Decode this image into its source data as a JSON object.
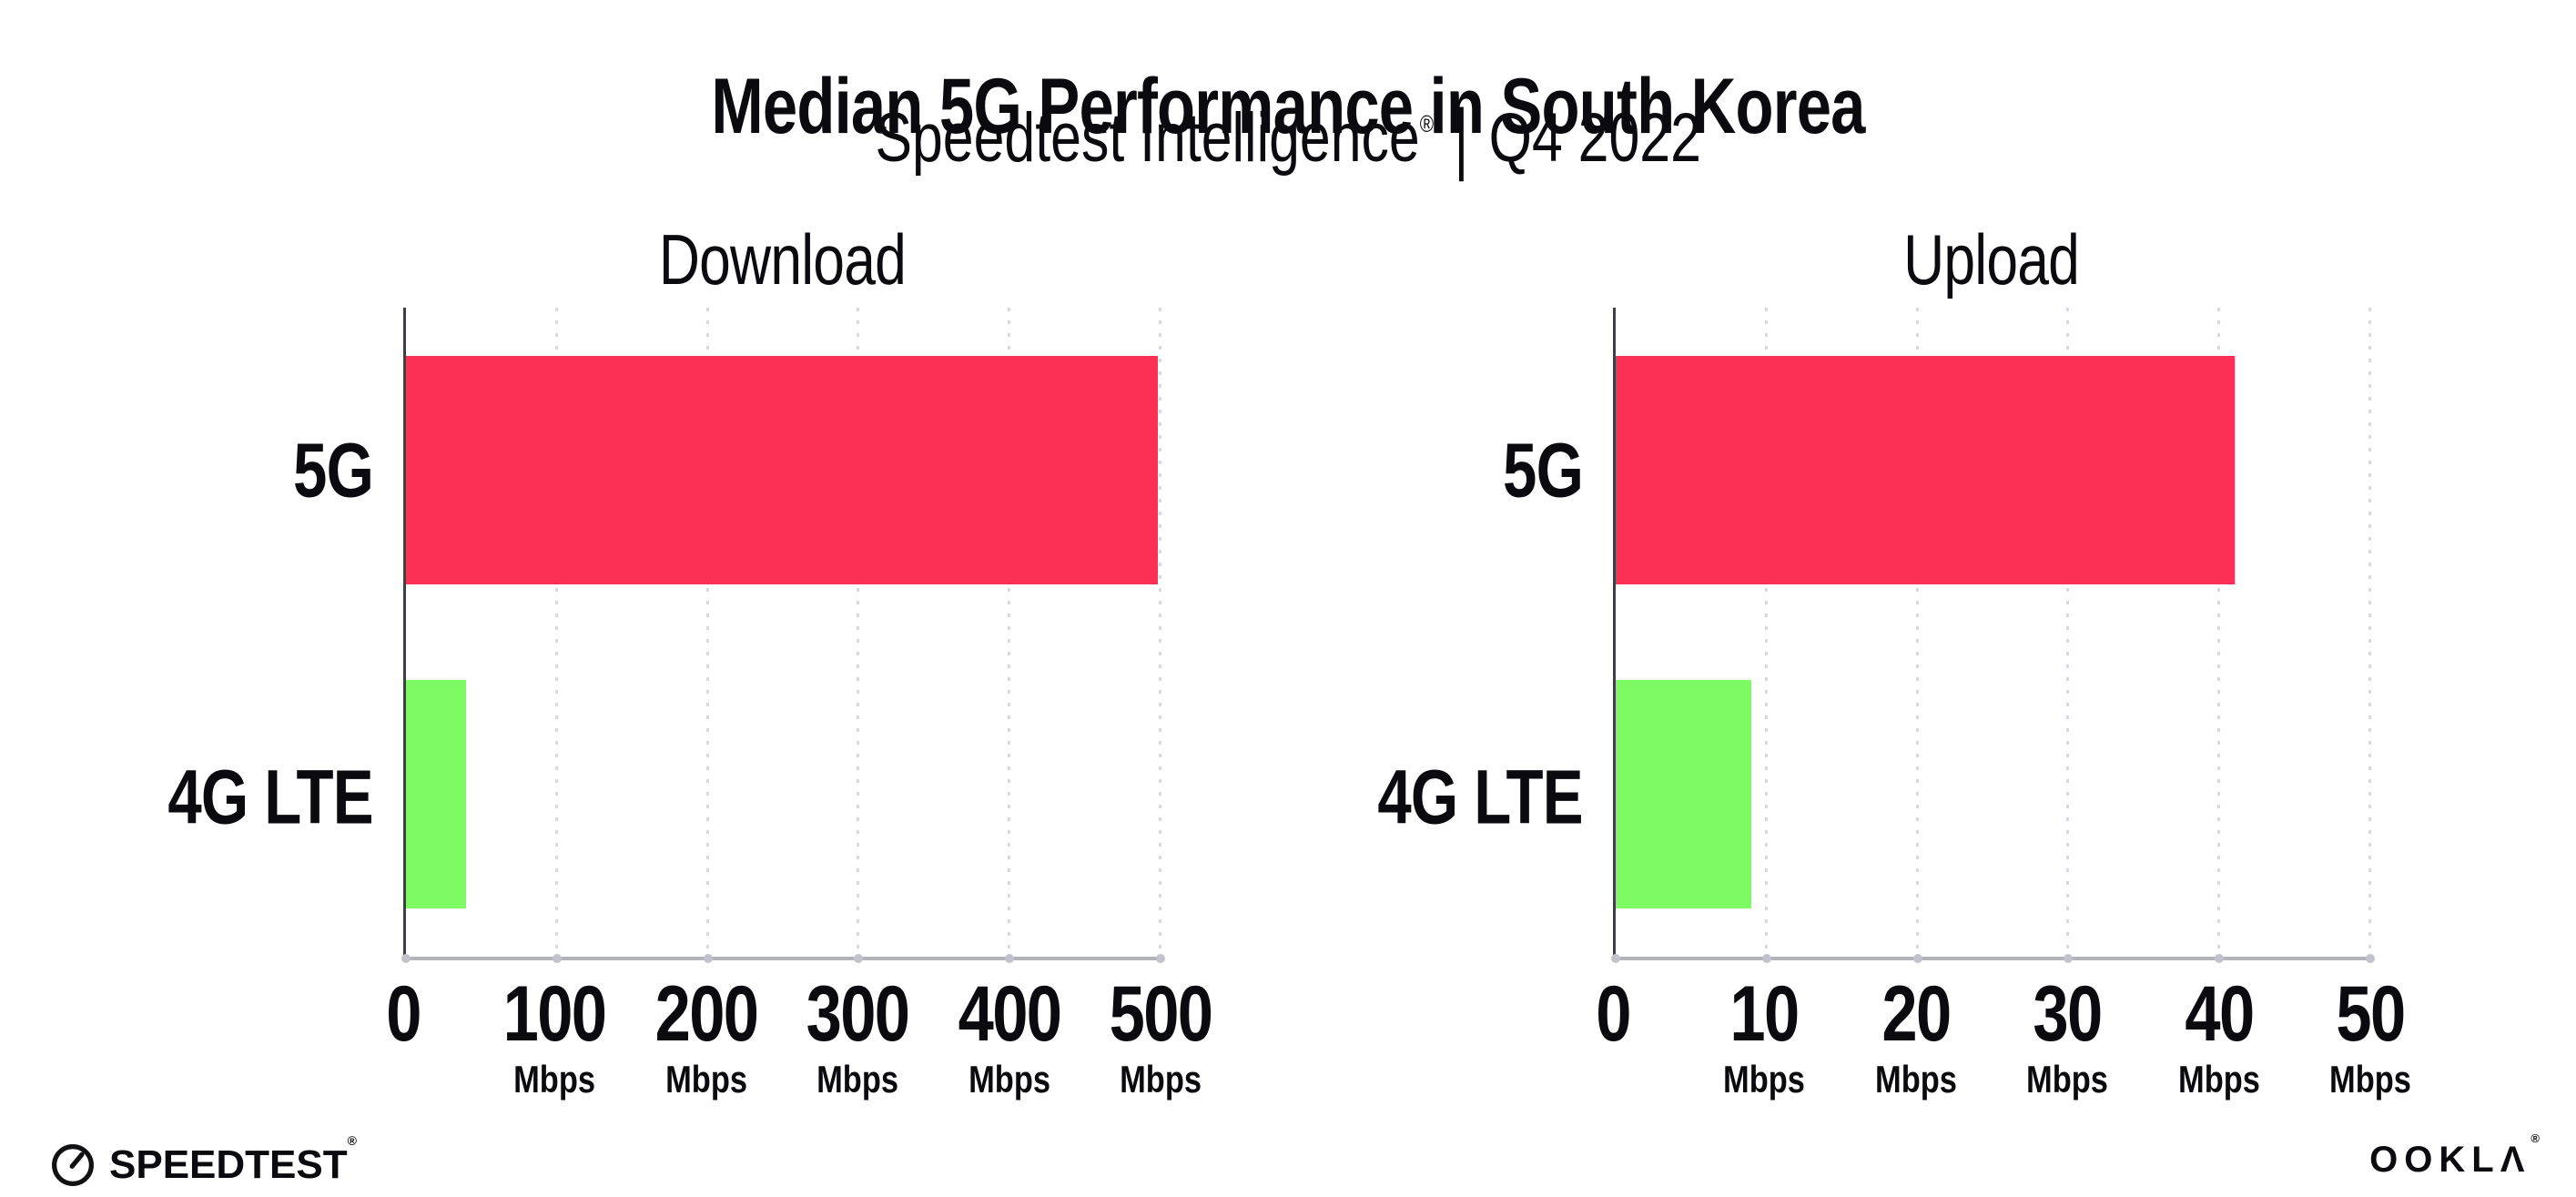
{
  "header": {
    "title": "Median 5G Performance in South Korea",
    "subtitle_brand": "Speedtest Intelligence",
    "subtitle_reg": "®",
    "subtitle_separator": "|",
    "subtitle_period": "Q4 2022"
  },
  "footer": {
    "speedtest_label": "SPEEDTEST",
    "speedtest_reg": "®",
    "ookla_label": "OOKLΛ",
    "ookla_reg": "®"
  },
  "colors": {
    "bar_5g": "#FC3054",
    "bar_4g_lte": "#7DFA64",
    "gridline": "#D9D9E3",
    "y_axis_spine": "#3F3F46",
    "x_axis_line": "#B3B3BB",
    "tick_dot": "#C2C2CC",
    "text": "#0B0B0F"
  },
  "chart_data": [
    {
      "type": "bar",
      "orientation": "horizontal",
      "title": "Download",
      "categories": [
        "5G",
        "4G LTE"
      ],
      "values": [
        498,
        40
      ],
      "unit": "Mbps",
      "xlim": [
        0,
        500
      ],
      "xticks": [
        0,
        100,
        200,
        300,
        400,
        500
      ],
      "tick_unit": "Mbps",
      "bar_colors": [
        "#FC3054",
        "#7DFA64"
      ],
      "grid": "vertical dotted gridlines at each tick",
      "legend": "none"
    },
    {
      "type": "bar",
      "orientation": "horizontal",
      "title": "Upload",
      "categories": [
        "5G",
        "4G LTE"
      ],
      "values": [
        41,
        9
      ],
      "unit": "Mbps",
      "xlim": [
        0,
        50
      ],
      "xticks": [
        0,
        10,
        20,
        30,
        40,
        50
      ],
      "tick_unit": "Mbps",
      "bar_colors": [
        "#FC3054",
        "#7DFA64"
      ],
      "grid": "vertical dotted gridlines at each tick",
      "legend": "none"
    }
  ]
}
